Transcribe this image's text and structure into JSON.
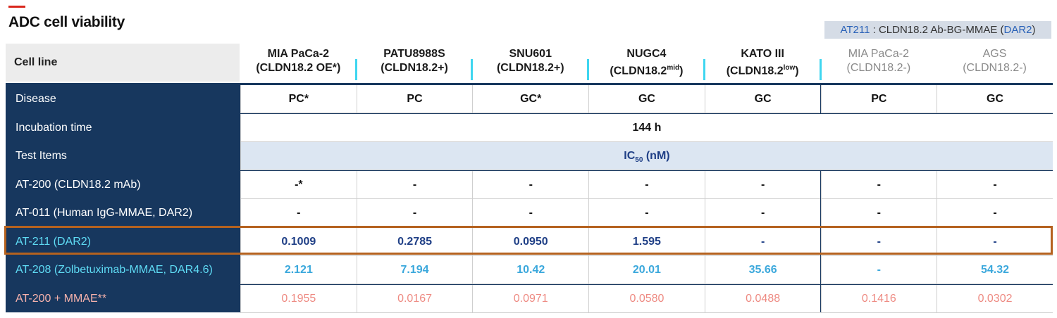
{
  "title": "ADC cell viability",
  "legend": {
    "code": "AT211",
    "sep": " : CLDN18.2 Ab-BG-MMAE (",
    "dar": "DAR2",
    "close": ")"
  },
  "header": {
    "row_label": "Cell line",
    "columns": [
      {
        "name": "MIA PaCa-2",
        "sub": "(CLDN18.2 OE*)",
        "sup": "",
        "sub_end": ""
      },
      {
        "name": "PATU8988S",
        "sub": "(CLDN18.2+)",
        "sup": "",
        "sub_end": ""
      },
      {
        "name": "SNU601",
        "sub": "(CLDN18.2+)",
        "sup": "",
        "sub_end": ""
      },
      {
        "name": "NUGC4",
        "sub": "(CLDN18.2",
        "sup": "mid",
        "sub_end": ")"
      },
      {
        "name": "KATO III",
        "sub": "(CLDN18.2",
        "sup": "low",
        "sub_end": ")"
      },
      {
        "name": "MIA PaCa-2",
        "sub": "(CLDN18.2-)",
        "sup": "",
        "sub_end": ""
      },
      {
        "name": "AGS",
        "sub": "(CLDN18.2-)",
        "sup": "",
        "sub_end": ""
      }
    ]
  },
  "rows": {
    "disease": {
      "label": "Disease",
      "values": [
        "PC*",
        "PC",
        "GC*",
        "GC",
        "GC",
        "PC",
        "GC"
      ]
    },
    "incubation": {
      "label": "Incubation time",
      "value": "144 h"
    },
    "test_items": {
      "label": "Test Items",
      "value_prefix": "IC",
      "value_sub": "50",
      "value_suffix": " (nM)"
    },
    "at200": {
      "label": "AT-200 (CLDN18.2 mAb)",
      "values": [
        "-*",
        "-",
        "-",
        "-",
        "-",
        "-",
        "-"
      ]
    },
    "at011": {
      "label": "AT-011 (Human IgG-MMAE, DAR2)",
      "values": [
        "-",
        "-",
        "-",
        "-",
        "-",
        "-",
        "-"
      ]
    },
    "at211": {
      "label": "AT-211 (DAR2)",
      "values": [
        "0.1009",
        "0.2785",
        "0.0950",
        "1.595",
        "-",
        "-",
        "-"
      ]
    },
    "at208": {
      "label": "AT-208 (Zolbetuximab-MMAE, DAR4.6)",
      "values": [
        "2.121",
        "7.194",
        "10.42",
        "20.01",
        "35.66",
        "-",
        "54.32"
      ]
    },
    "at200mmae": {
      "label": "AT-200 + MMAE**",
      "values": [
        "0.1955",
        "0.0167",
        "0.0971",
        "0.0580",
        "0.0488",
        "0.1416",
        "0.0302"
      ]
    }
  }
}
